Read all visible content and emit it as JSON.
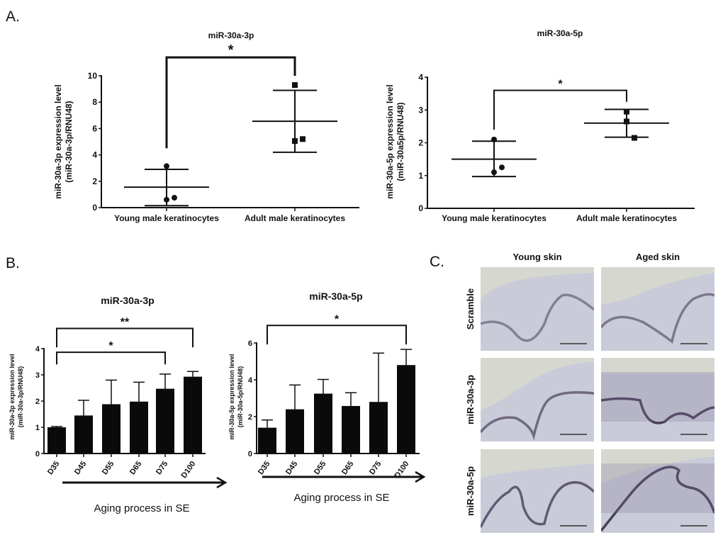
{
  "panel_labels": {
    "a": "A.",
    "b": "B.",
    "c": "C."
  },
  "chart_data": [
    {
      "type": "scatter",
      "panel": "A",
      "title": "miR-30a-3p",
      "ylabel": [
        "miR-30a-3p expression level",
        "(miR-30a-3p/RNU48)"
      ],
      "ylim": [
        0,
        10
      ],
      "yticks": [
        0,
        2,
        4,
        6,
        8,
        10
      ],
      "categories": [
        "Young male keratinocytes",
        "Adult male keratinocytes"
      ],
      "groups": [
        {
          "marker": "circle",
          "points": [
            3.15,
            0.6,
            0.75
          ],
          "mean": 1.55,
          "sd_upper": 2.9,
          "sd_lower": 0.15
        },
        {
          "marker": "square",
          "points": [
            9.3,
            5.05,
            5.2
          ],
          "mean": 6.55,
          "sd_upper": 8.9,
          "sd_lower": 4.2
        }
      ],
      "significance": [
        {
          "from": 0,
          "to": 1,
          "y": 11.4,
          "left_end": 4.5,
          "right_end": 10.0,
          "label": "*"
        }
      ]
    },
    {
      "type": "scatter",
      "panel": "A",
      "title": "miR-30a-5p",
      "ylabel": [
        "miR-30a-5p expression level",
        "(miR-30a5p/RNU48)"
      ],
      "ylim": [
        0,
        4
      ],
      "yticks": [
        0,
        1,
        2,
        3,
        4
      ],
      "categories": [
        "Young male keratinocytes",
        "Adult male keratinocytes"
      ],
      "groups": [
        {
          "marker": "circle",
          "points": [
            2.1,
            1.1,
            1.25
          ],
          "mean": 1.5,
          "sd_upper": 2.05,
          "sd_lower": 0.97
        },
        {
          "marker": "square",
          "points": [
            2.95,
            2.65,
            2.15
          ],
          "mean": 2.6,
          "sd_upper": 3.02,
          "sd_lower": 2.17
        }
      ],
      "significance": [
        {
          "from": 0,
          "to": 1,
          "y": 3.6,
          "left_end": 2.4,
          "right_end": 3.25,
          "label": "*"
        }
      ]
    },
    {
      "type": "bar",
      "panel": "B",
      "title": "miR-30a-3p",
      "ylabel": [
        "miR-30a-3p expression level",
        "(miR-30a-3p/RNU48)"
      ],
      "ylim": [
        0,
        4
      ],
      "yticks": [
        0,
        1,
        2,
        3,
        4
      ],
      "categories": [
        "D35",
        "D45",
        "D55",
        "D65",
        "D75",
        "D100"
      ],
      "values": [
        1.0,
        1.45,
        1.88,
        1.98,
        2.47,
        2.93
      ],
      "error_upper": [
        1.03,
        2.03,
        2.8,
        2.72,
        3.03,
        3.13
      ],
      "xlabel": "Aging process in SE",
      "significance": [
        {
          "from": 0,
          "to": 5,
          "y": 4.77,
          "left_end": 4.05,
          "right_end": 4.05,
          "label": "**"
        },
        {
          "from": 0,
          "to": 4,
          "y": 3.86,
          "left_end": 3.4,
          "right_end": 3.4,
          "label": "*"
        }
      ]
    },
    {
      "type": "bar",
      "panel": "B",
      "title": "miR-30a-5p",
      "ylabel": [
        "miR-30a-5p expression level",
        "(miR-30a-5p/RNU48)"
      ],
      "ylim": [
        0,
        6
      ],
      "yticks": [
        0,
        2,
        4,
        6
      ],
      "categories": [
        "D35",
        "D45",
        "D55",
        "D65",
        "D75",
        "D100"
      ],
      "values": [
        1.4,
        2.4,
        3.25,
        2.58,
        2.8,
        4.8
      ],
      "error_upper": [
        1.82,
        3.72,
        4.02,
        3.3,
        5.45,
        5.65
      ],
      "xlabel": "Aging process in SE",
      "significance": [
        {
          "from": 0,
          "to": 5,
          "y": 6.95,
          "left_end": 5.92,
          "right_end": 5.92,
          "label": "*"
        }
      ]
    }
  ],
  "panel_c": {
    "columns": [
      "Young skin",
      "Aged skin"
    ],
    "rows": [
      "Scramble",
      "miR-30a-3p",
      "miR-30a-5p"
    ],
    "colors": {
      "tissue": "#c9ccd8",
      "background": "#d6d8d0",
      "stain": "#4a3f5a"
    }
  }
}
